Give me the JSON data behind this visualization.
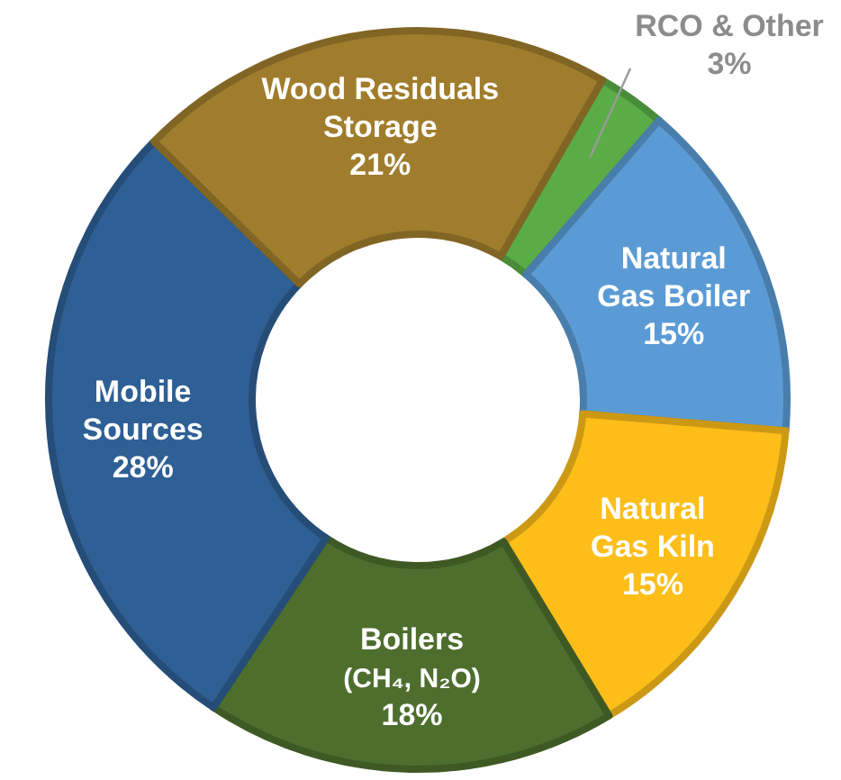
{
  "chart_data": {
    "type": "donut",
    "categories": [
      "RCO & Other",
      "Natural\nGas Boiler",
      "Natural\nGas Kiln",
      "Boilers\n(CH₄, N₂O)",
      "Mobile\nSources",
      "Wood Residuals\nStorage"
    ],
    "values": [
      3,
      15,
      15,
      18,
      28,
      21
    ],
    "value_labels": [
      "3%",
      "15%",
      "15%",
      "18%",
      "28%",
      "21%"
    ],
    "colors": [
      "#5aad46",
      "#5b9bd5",
      "#fdbe1a",
      "#4e6e2e",
      "#2e5f95",
      "#a07d2c"
    ]
  }
}
